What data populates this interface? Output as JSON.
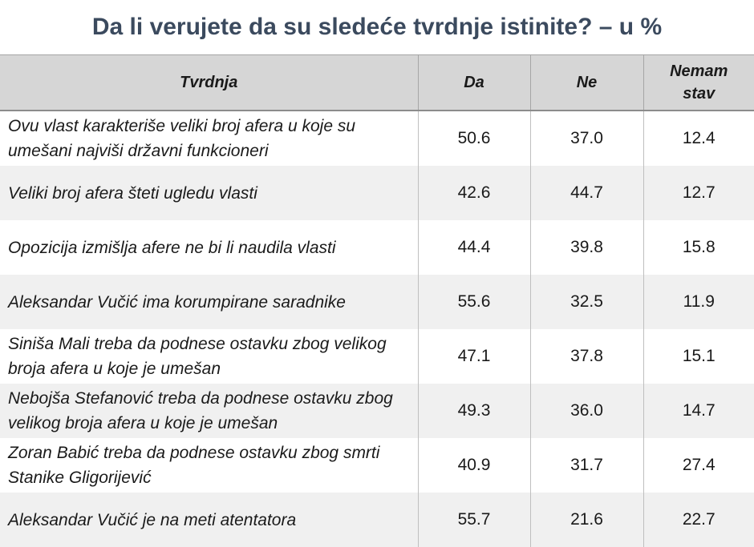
{
  "chart_data": {
    "type": "table",
    "title": "Da li verujete da su sledeće tvrdnje istinite? – u %",
    "columns": [
      "Tvrdnja",
      "Da",
      "Ne",
      "Nemam stav"
    ],
    "header_lines": {
      "col0": "Tvrdnja",
      "col1": "Da",
      "col2": "Ne",
      "col3_line1": "Nemam",
      "col3_line2": "stav"
    },
    "rows": [
      {
        "statement": "Ovu vlast karakteriše veliki broj afera u koje su umešani najviši državni funkcioneri",
        "da": "50.6",
        "ne": "37.0",
        "nemam_stav": "12.4"
      },
      {
        "statement": "Veliki broj afera šteti ugledu vlasti",
        "da": "42.6",
        "ne": "44.7",
        "nemam_stav": "12.7"
      },
      {
        "statement": "Opozicija izmišlja afere ne bi li naudila vlasti",
        "da": "44.4",
        "ne": "39.8",
        "nemam_stav": "15.8"
      },
      {
        "statement": "Aleksandar Vučić ima korumpirane saradnike",
        "da": "55.6",
        "ne": "32.5",
        "nemam_stav": "11.9"
      },
      {
        "statement": "Siniša Mali treba da podnese ostavku zbog velikog broja afera u koje je umešan",
        "da": "47.1",
        "ne": "37.8",
        "nemam_stav": "15.1"
      },
      {
        "statement": "Nebojša Stefanović treba da podnese ostavku zbog velikog broja afera u koje je umešan",
        "da": "49.3",
        "ne": "36.0",
        "nemam_stav": "14.7"
      },
      {
        "statement": "Zoran Babić treba da podnese ostavku zbog smrti Stanike Gligorijević",
        "da": "40.9",
        "ne": "31.7",
        "nemam_stav": "27.4"
      },
      {
        "statement": "Aleksandar Vučić je na meti atentatora",
        "da": "55.7",
        "ne": "21.6",
        "nemam_stav": "22.7"
      }
    ]
  }
}
